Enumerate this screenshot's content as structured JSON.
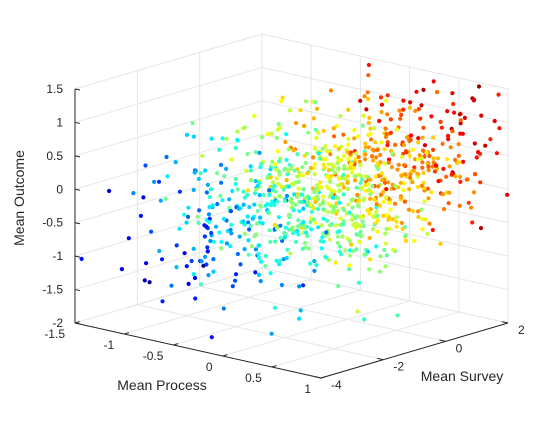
{
  "chart_data": {
    "type": "scatter",
    "title": "",
    "projection": "3d",
    "xlabel": "Mean Process",
    "ylabel": "Mean Survey",
    "zlabel": "Mean Outcome",
    "xlim": [
      -1.5,
      1
    ],
    "ylim": [
      -4,
      2
    ],
    "zlim": [
      -2,
      1.5
    ],
    "x_ticks": [
      "-1.5",
      "-1",
      "-0.5",
      "0",
      "0.5",
      "1"
    ],
    "y_ticks": [
      "-4",
      "-2",
      "0",
      "2"
    ],
    "z_ticks": [
      "-2",
      "-1.5",
      "-1",
      "-0.5",
      "0",
      "0.5",
      "1",
      "1.5"
    ],
    "grid": true,
    "box": false,
    "colormap": "jet",
    "color_by": "Mean Survey",
    "marker_color_range": [
      "#00008f",
      "#0000ff",
      "#00ffff",
      "#ffff00",
      "#ff0000",
      "#800000"
    ],
    "point_count_approx": 1000,
    "points_sample": [
      [
        -1.35,
        -2.6,
        -0.2
      ],
      [
        -1.1,
        -3.0,
        0.35
      ],
      [
        -0.95,
        -2.8,
        0.5
      ],
      [
        -0.9,
        -3.2,
        0.2
      ],
      [
        -0.8,
        -2.4,
        0.0
      ],
      [
        -0.7,
        -2.9,
        -0.3
      ],
      [
        -0.6,
        -3.1,
        -0.9
      ],
      [
        -0.5,
        -3.3,
        -1.4
      ],
      [
        -0.4,
        -2.7,
        -1.6
      ],
      [
        -0.3,
        -3.4,
        -1.9
      ],
      [
        -0.2,
        -2.2,
        -1.1
      ],
      [
        -0.1,
        -2.5,
        0.8
      ],
      [
        -0.05,
        -1.8,
        1.0
      ],
      [
        0.0,
        -2.0,
        -0.5
      ],
      [
        0.05,
        -1.6,
        0.1
      ],
      [
        0.1,
        -1.2,
        0.6
      ],
      [
        0.15,
        -0.9,
        -0.2
      ],
      [
        0.2,
        -0.6,
        0.4
      ],
      [
        0.25,
        -0.4,
        -0.7
      ],
      [
        0.3,
        -0.2,
        0.9
      ],
      [
        0.35,
        0.0,
        0.3
      ],
      [
        0.4,
        0.2,
        -0.4
      ],
      [
        0.45,
        0.4,
        0.7
      ],
      [
        0.5,
        0.6,
        1.2
      ],
      [
        0.55,
        0.9,
        0.5
      ],
      [
        0.6,
        1.1,
        1.0
      ],
      [
        0.65,
        1.3,
        0.2
      ],
      [
        0.7,
        1.5,
        0.8
      ],
      [
        0.75,
        1.7,
        1.3
      ],
      [
        0.8,
        1.9,
        0.6
      ]
    ]
  }
}
